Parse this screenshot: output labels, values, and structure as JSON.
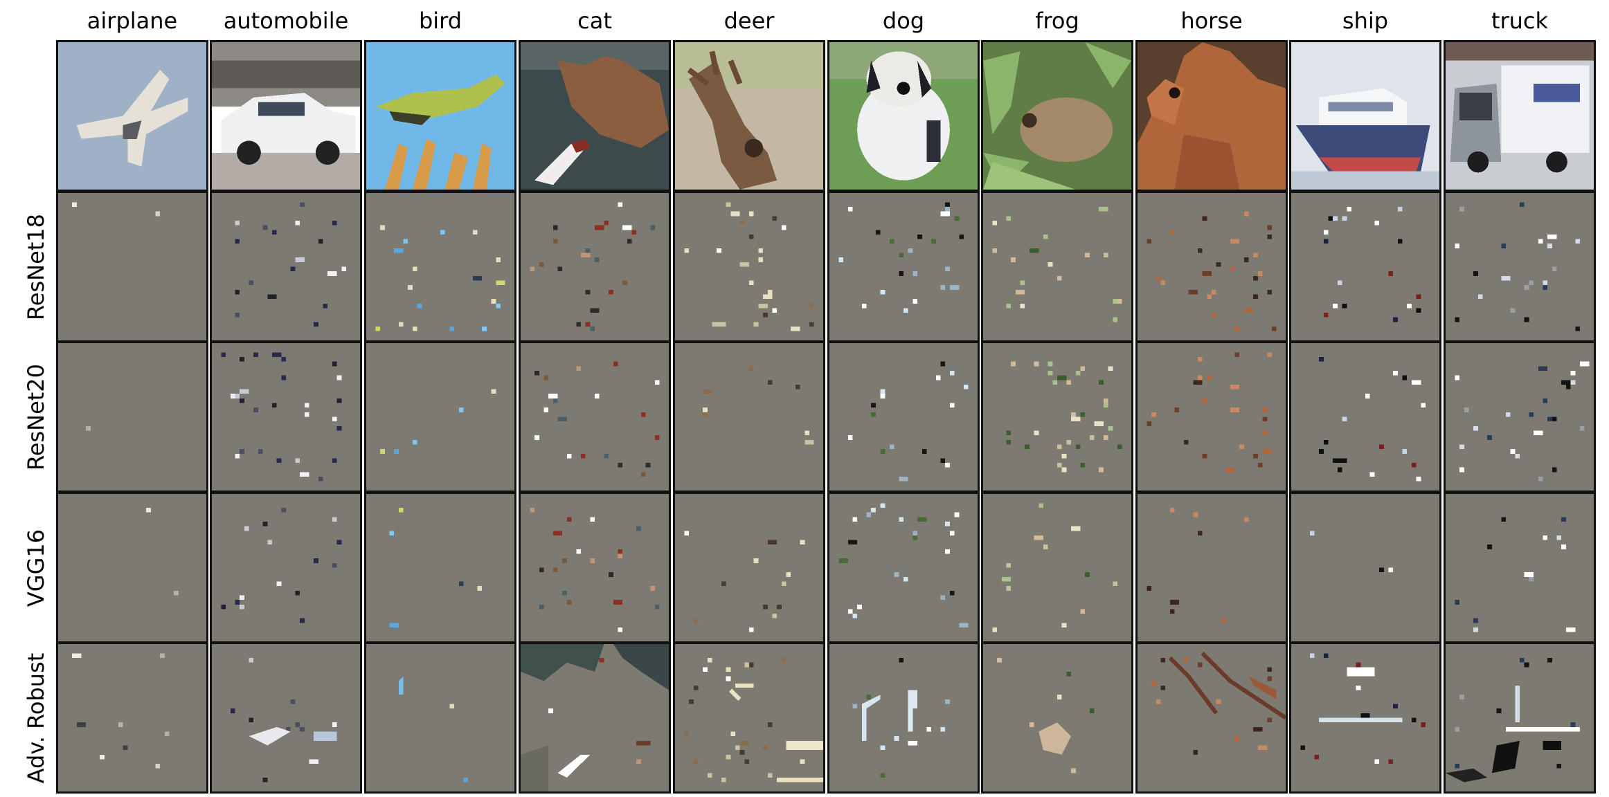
{
  "columns": [
    "airplane",
    "automobile",
    "bird",
    "cat",
    "deer",
    "dog",
    "frog",
    "horse",
    "ship",
    "truck"
  ],
  "rows": [
    "ResNet18",
    "ResNet20",
    "VGG16",
    "Adv. Robust"
  ],
  "colors": {
    "mask_background": "#7d7a72",
    "cell_border": "#111111"
  }
}
